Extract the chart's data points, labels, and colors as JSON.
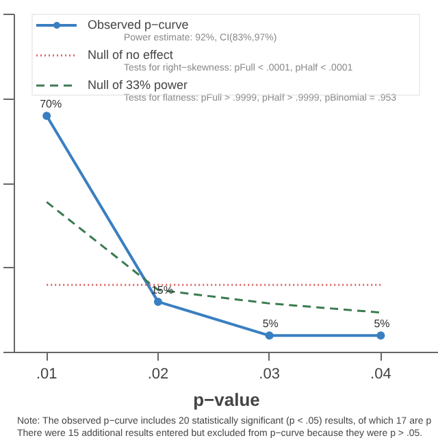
{
  "chart_data": {
    "type": "line",
    "xlabel": "p−value",
    "x": [
      0.01,
      0.02,
      0.03,
      0.04
    ],
    "xlim": [
      0.0071,
      0.0452
    ],
    "xticks": [
      {
        "value": 0.01,
        "label": ".01"
      },
      {
        "value": 0.02,
        "label": ".02"
      },
      {
        "value": 0.03,
        "label": ".03"
      },
      {
        "value": 0.04,
        "label": ".04"
      }
    ],
    "ylim": [
      0,
      100
    ],
    "yticks": [
      {
        "value": 0,
        "label": null
      },
      {
        "value": 25,
        "label": null
      },
      {
        "value": 50,
        "label": null
      },
      {
        "value": 75,
        "label": null
      },
      {
        "value": 100,
        "label": null
      }
    ],
    "series": [
      {
        "name": "Observed p−curve",
        "color": "#3a7fc1",
        "values": [
          70,
          15,
          5,
          5
        ],
        "marker": "circle",
        "line_style": "solid",
        "value_labels": [
          "70%",
          "15%",
          "5%",
          "5%"
        ]
      },
      {
        "name": "Null of no effect",
        "color": "#e06666",
        "values": [
          20,
          20,
          20,
          20
        ],
        "marker": "none",
        "line_style": "dotted"
      },
      {
        "name": "Null of 33% power",
        "color": "#3b7a50",
        "values": [
          44.5,
          18.5,
          14.5,
          11.8
        ],
        "marker": "none",
        "line_style": "dashed"
      }
    ],
    "legend": "top",
    "grid": false,
    "annotations": [
      "Power estimate: 92%, CI(83%,97%)",
      "Tests for right−skewness: pFull < .0001,  pHalf < .0001",
      "Tests for flatness: pFull > .9999,  pHalf > .9999,  pBinomial = .953",
      "Note: The observed p−curve includes 20 statistically significant (p < .05) results, of which 17 are p",
      "There were 15 additional results entered but excluded from p−curve because they were p > .05."
    ]
  }
}
